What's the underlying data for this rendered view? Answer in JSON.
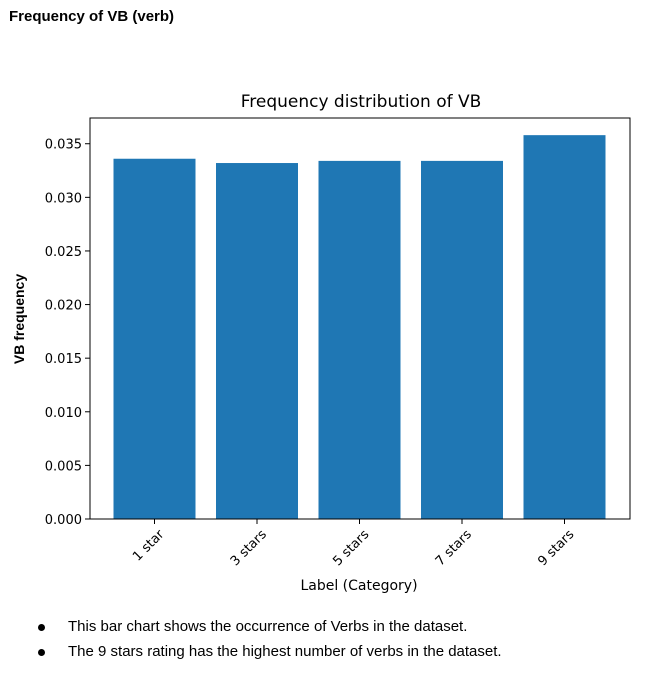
{
  "heading": "Frequency of VB (verb)",
  "chart_data": {
    "type": "bar",
    "title": "Frequency distribution of VB",
    "xlabel": "Label (Category)",
    "ylabel": "VB frequency",
    "categories": [
      "1 star",
      "3 stars",
      "5 stars",
      "7 stars",
      "9 stars"
    ],
    "values": [
      0.0336,
      0.0332,
      0.0334,
      0.0334,
      0.0358
    ],
    "ylim": [
      0,
      0.0374
    ],
    "yticks": [
      0.0,
      0.005,
      0.01,
      0.015,
      0.02,
      0.025,
      0.03,
      0.035
    ],
    "ytick_labels": [
      "0.000",
      "0.005",
      "0.010",
      "0.015",
      "0.020",
      "0.025",
      "0.030",
      "0.035"
    ],
    "bar_color": "#1f77b4",
    "grid": false,
    "legend": "none"
  },
  "notes": [
    "This bar chart shows the occurrence of Verbs in the dataset.",
    "The 9 stars rating has the highest number of verbs in the dataset."
  ]
}
